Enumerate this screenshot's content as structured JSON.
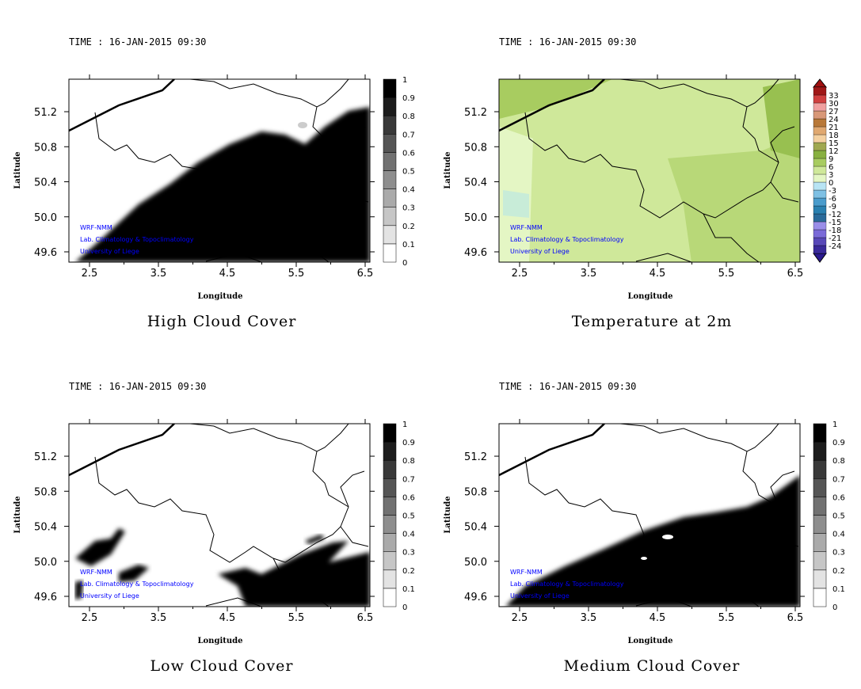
{
  "time_label": "TIME : 16-JAN-2015 09:30",
  "axes": {
    "xlabel": "Longitude",
    "ylabel": "Latitude",
    "xticks": [
      "2.5",
      "3.5",
      "4.5",
      "5.5",
      "6.5"
    ],
    "yticks": [
      "51.2",
      "50.8",
      "50.4",
      "50.0",
      "49.6"
    ]
  },
  "watermark": [
    "WRF-NMM",
    "Lab. Climatology & Topoclimatology",
    "University of Liege"
  ],
  "colorbars": {
    "cloud": {
      "labels": [
        "0",
        "0.1",
        "0.2",
        "0.3",
        "0.4",
        "0.5",
        "0.6",
        "0.7",
        "0.8",
        "0.9",
        "1"
      ]
    },
    "temp": {
      "labels": [
        "-24",
        "-21",
        "-18",
        "-15",
        "-12",
        "-9",
        "-6",
        "-3",
        "0",
        "3",
        "6",
        "9",
        "12",
        "15",
        "18",
        "21",
        "24",
        "27",
        "30",
        "33"
      ],
      "colors": [
        "#3a2a9a",
        "#5848b8",
        "#7a6ad8",
        "#9a8ee8",
        "#2a6a9a",
        "#2a80b0",
        "#4a9ccc",
        "#7ec0e4",
        "#b8e4f4",
        "#e4f6c4",
        "#cfe89a",
        "#a8cc60",
        "#88b040",
        "#a0a850",
        "#f4d0a0",
        "#e0a870",
        "#b87838",
        "#d89878",
        "#f0a0a0",
        "#d04040",
        "#a01818"
      ],
      "under": "#2a1a90",
      "over": "#a01010"
    }
  },
  "panels": [
    {
      "title": "High Cloud Cover",
      "colorbar": "cloud"
    },
    {
      "title": "Temperature at 2m",
      "colorbar": "temp"
    },
    {
      "title": "Low Cloud Cover",
      "colorbar": "cloud"
    },
    {
      "title": "Medium Cloud Cover",
      "colorbar": "cloud"
    }
  ]
}
